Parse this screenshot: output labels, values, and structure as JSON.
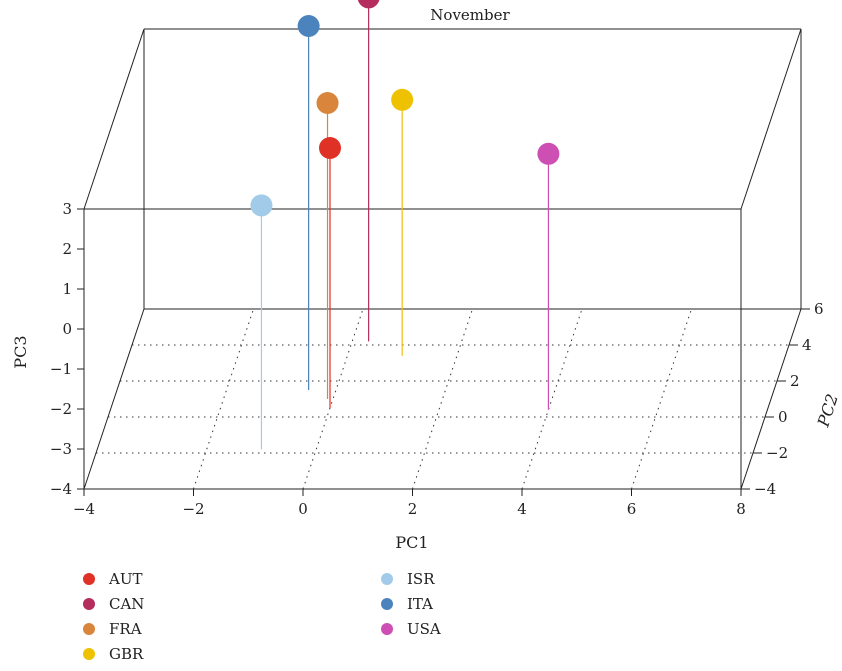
{
  "chart_data": {
    "type": "scatter3d",
    "title": "November",
    "xlabel": "PC1",
    "ylabel": "PC2",
    "zlabel": "PC3",
    "xlim": [
      -4,
      8
    ],
    "ylim": [
      -4,
      6
    ],
    "zlim": [
      -4,
      3
    ],
    "x_ticks": [
      -4,
      -2,
      0,
      2,
      4,
      6,
      8
    ],
    "y_ticks": [
      -4,
      -2,
      0,
      2,
      4,
      6
    ],
    "z_ticks": [
      -4,
      -3,
      -2,
      -1,
      0,
      1,
      2,
      3
    ],
    "grid": true,
    "legend_position": "bottom-left",
    "points": [
      {
        "name": "AUT",
        "color": "#e03127",
        "x": 0.0,
        "y": 0.5,
        "z": 2.5
      },
      {
        "name": "CAN",
        "color": "#b52d5c",
        "x": 0.3,
        "y": 4.2,
        "z": 4.6
      },
      {
        "name": "FRA",
        "color": "#d9853c",
        "x": -0.1,
        "y": 1.0,
        "z": 3.4
      },
      {
        "name": "GBR",
        "color": "#eec200",
        "x": 1.0,
        "y": 3.4,
        "z": 2.4
      },
      {
        "name": "ISR",
        "color": "#a1cbe8",
        "x": -1.0,
        "y": -1.8,
        "z": 2.1
      },
      {
        "name": "ITA",
        "color": "#4b84bc",
        "x": -0.5,
        "y": 1.5,
        "z": 5.1
      },
      {
        "name": "USA",
        "color": "#cd4fb3",
        "x": 4.0,
        "y": 0.4,
        "z": 2.4
      }
    ]
  }
}
